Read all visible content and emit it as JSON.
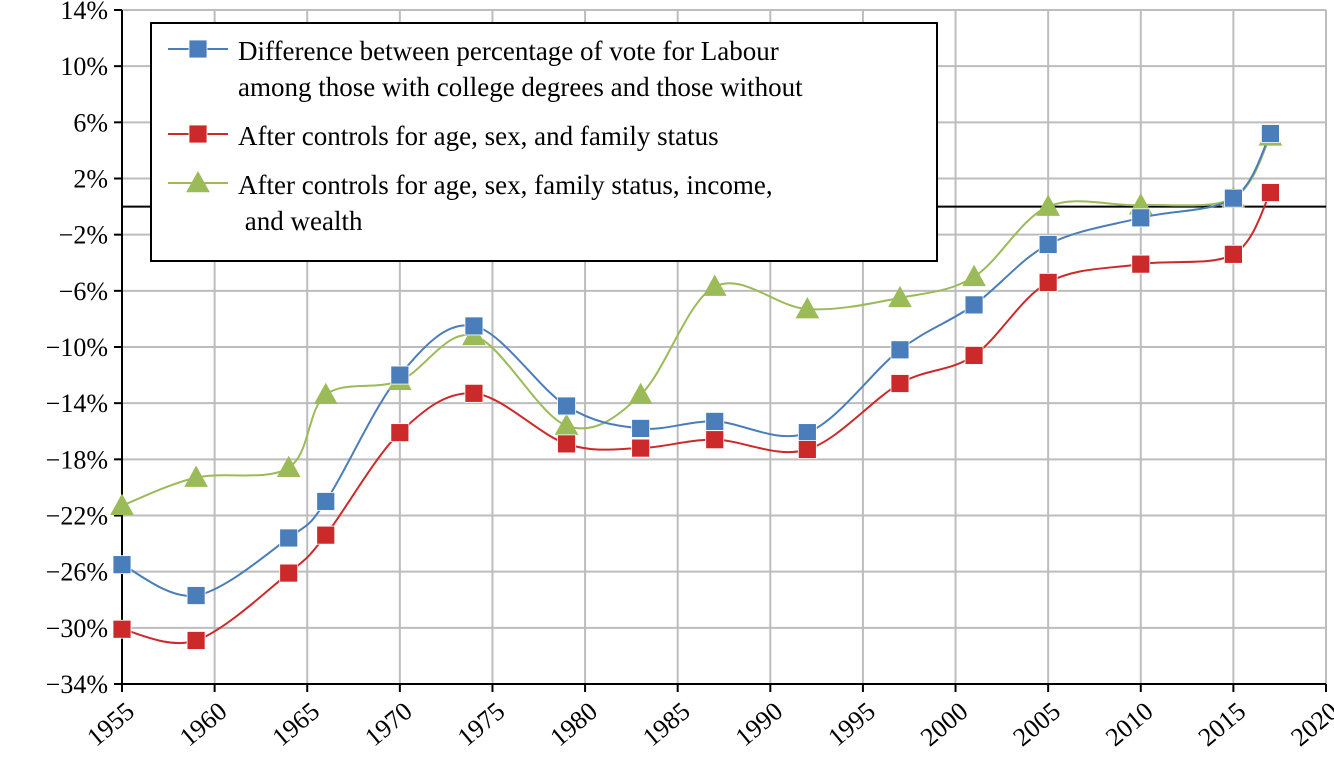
{
  "chart_data": {
    "type": "line",
    "title": "",
    "xlabel": "",
    "ylabel": "",
    "xlim": [
      1955,
      2020
    ],
    "ylim": [
      -34,
      14
    ],
    "x_ticks": [
      1955,
      1960,
      1965,
      1970,
      1975,
      1980,
      1985,
      1990,
      1995,
      2000,
      2005,
      2010,
      2015,
      2020
    ],
    "y_ticks": [
      14,
      10,
      6,
      2,
      -2,
      -6,
      -10,
      -14,
      -18,
      -22,
      -26,
      -30,
      -34
    ],
    "y_tick_labels": [
      "14%",
      "10%",
      "6%",
      "2%",
      "−2%",
      "−6%",
      "−10%",
      "−14%",
      "−18%",
      "−22%",
      "−26%",
      "−30%",
      "−34%"
    ],
    "grid": true,
    "legend_position": "top-left",
    "series": [
      {
        "name": "Difference between percentage of vote for Labour among those with college degrees and those without",
        "legend_lines": [
          "Difference between percentage of vote for Labour",
          "among those with college degrees and those without"
        ],
        "color": "#4a7ebb",
        "marker": "square",
        "points": [
          [
            1955,
            -25.5
          ],
          [
            1959,
            -27.7
          ],
          [
            1964,
            -23.6
          ],
          [
            1966,
            -21.0
          ],
          [
            1970,
            -12.0
          ],
          [
            1974,
            -8.5
          ],
          [
            1979,
            -14.2
          ],
          [
            1983,
            -15.8
          ],
          [
            1987,
            -15.3
          ],
          [
            1992,
            -16.1
          ],
          [
            1997,
            -10.2
          ],
          [
            2001,
            -7.0
          ],
          [
            2005,
            -2.7
          ],
          [
            2010,
            -0.8
          ],
          [
            2015,
            0.6
          ],
          [
            2017,
            5.2
          ]
        ]
      },
      {
        "name": "After controls for age, sex, and family status",
        "legend_lines": [
          "After controls for age, sex, and family status"
        ],
        "color": "#cc2a2a",
        "marker": "square",
        "points": [
          [
            1955,
            -30.1
          ],
          [
            1959,
            -30.9
          ],
          [
            1964,
            -26.1
          ],
          [
            1966,
            -23.4
          ],
          [
            1970,
            -16.1
          ],
          [
            1974,
            -13.3
          ],
          [
            1979,
            -16.9
          ],
          [
            1983,
            -17.2
          ],
          [
            1987,
            -16.6
          ],
          [
            1992,
            -17.3
          ],
          [
            1997,
            -12.6
          ],
          [
            2001,
            -10.6
          ],
          [
            2005,
            -5.4
          ],
          [
            2010,
            -4.1
          ],
          [
            2015,
            -3.4
          ],
          [
            2017,
            1.0
          ]
        ]
      },
      {
        "name": "After controls for age, sex, family status, income, and wealth",
        "legend_lines": [
          "After controls for age, sex, family status, income,",
          " and wealth"
        ],
        "color": "#9bbb59",
        "marker": "triangle",
        "points": [
          [
            1955,
            -21.3
          ],
          [
            1959,
            -19.3
          ],
          [
            1964,
            -18.6
          ],
          [
            1966,
            -13.4
          ],
          [
            1970,
            -12.4
          ],
          [
            1974,
            -9.2
          ],
          [
            1979,
            -15.6
          ],
          [
            1983,
            -13.4
          ],
          [
            1987,
            -5.7
          ],
          [
            1992,
            -7.3
          ],
          [
            1997,
            -6.5
          ],
          [
            2001,
            -5.0
          ],
          [
            2005,
            0.0
          ],
          [
            2010,
            0.1
          ],
          [
            2015,
            0.6
          ],
          [
            2017,
            5.0
          ]
        ]
      }
    ]
  }
}
